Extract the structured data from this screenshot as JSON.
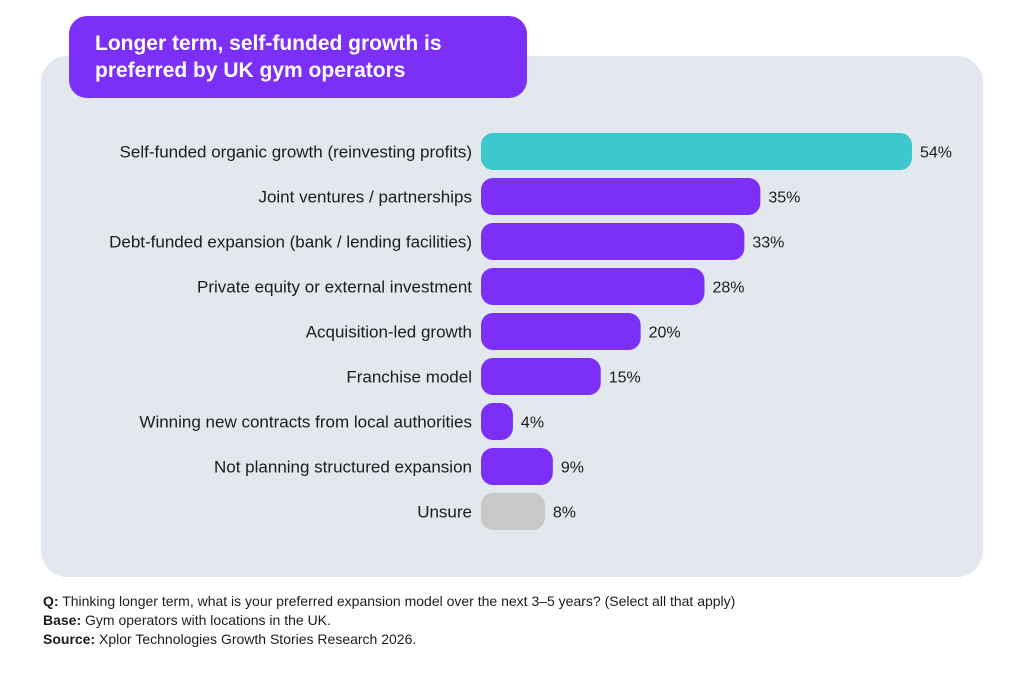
{
  "title": [
    "Longer term, self-funded growth is",
    "preferred by UK gym operators"
  ],
  "chart_data": {
    "type": "bar",
    "orientation": "horizontal",
    "categories": [
      "Self-funded organic growth (reinvesting profits)",
      "Joint ventures / partnerships",
      "Debt-funded expansion (bank / lending facilities)",
      "Private equity or external investment",
      "Acquisition-led growth",
      "Franchise model",
      "Winning new contracts from local authorities",
      "Not planning structured expansion",
      "Unsure"
    ],
    "values": [
      54,
      35,
      33,
      28,
      20,
      15,
      4,
      9,
      8
    ],
    "value_labels": [
      "54%",
      "35%",
      "33%",
      "28%",
      "20%",
      "15%",
      "4%",
      "9%",
      "8%"
    ],
    "unit": "%",
    "bar_colors": [
      "#3cc8cc",
      "#7b2ff7",
      "#7b2ff7",
      "#7b2ff7",
      "#7b2ff7",
      "#7b2ff7",
      "#7b2ff7",
      "#7b2ff7",
      "#c8c8c8"
    ],
    "xlim": [
      0,
      54
    ],
    "grid": false,
    "legend": "none"
  },
  "notes": {
    "q_label": "Q:",
    "q_text": " Thinking longer term, what is your preferred expansion model over the next 3–5 years? (Select all that apply)",
    "base_label": "Base:",
    "base_text": " Gym operators with locations in the UK.",
    "source_label": "Source:",
    "source_text": " Xplor Technologies Growth Stories Research 2026."
  },
  "colors": {
    "accent": "#7b2ff7",
    "highlight": "#3cc8cc",
    "neutral": "#c8c8c8",
    "panel": "#e3e8ee"
  }
}
